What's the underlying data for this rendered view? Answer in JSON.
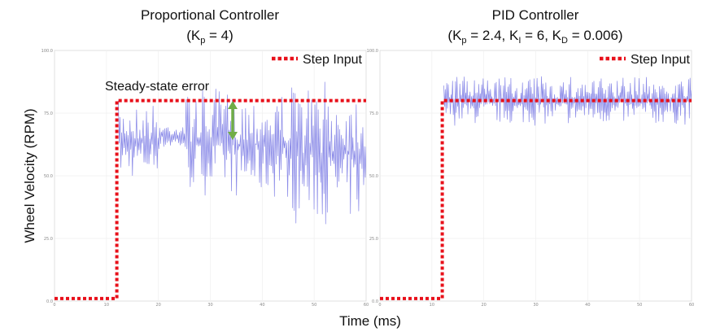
{
  "chart_data": [
    {
      "type": "line",
      "title": "Proportional Controller",
      "subtitle": {
        "prefix": "(K",
        "k1_sub": "p",
        "suffix": " = 4)"
      },
      "xlim": [
        0,
        60
      ],
      "ylim": [
        0,
        100
      ],
      "x_ticks": [
        0,
        10,
        20,
        30,
        40,
        50,
        60
      ],
      "y_ticks": [
        0,
        25,
        50,
        75,
        100
      ],
      "y_tick_labels": [
        "0.0",
        "25.0",
        "50.0",
        "75.0",
        "100.0"
      ],
      "grid": true,
      "legend": {
        "position": "top-right",
        "entries": [
          "Step Input"
        ]
      },
      "annotation": "Steady-state error",
      "step_input": {
        "name": "Step Input",
        "color": "#e8101a",
        "x": [
          0,
          12,
          12,
          60
        ],
        "y": [
          1,
          1,
          80,
          80
        ]
      },
      "response": {
        "color": "#8c8ce8",
        "start": 12.3,
        "end": 60,
        "segments": [
          {
            "x": [
              12.3,
              20
            ],
            "y_low": 48,
            "y_high": 80
          },
          {
            "x": [
              20,
              25
            ],
            "y_low": 60,
            "y_high": 72
          },
          {
            "x": [
              25,
              35
            ],
            "y_low": 42,
            "y_high": 85
          },
          {
            "x": [
              35,
              45
            ],
            "y_low": 40,
            "y_high": 85
          },
          {
            "x": [
              45,
              60
            ],
            "y_low": 30,
            "y_high": 88
          }
        ]
      }
    },
    {
      "type": "line",
      "title": "PID Controller",
      "subtitle": {
        "parts": [
          {
            "t": "(K"
          },
          {
            "t": "p",
            "sub": true
          },
          {
            "t": " = 2.4, K"
          },
          {
            "t": "I",
            "sub": true
          },
          {
            "t": " = 6, K"
          },
          {
            "t": "D",
            "sub": true
          },
          {
            "t": " = 0.006)"
          }
        ]
      },
      "xlim": [
        0,
        60
      ],
      "ylim": [
        0,
        100
      ],
      "x_ticks": [
        0,
        10,
        20,
        30,
        40,
        50,
        60
      ],
      "y_ticks": [
        0,
        25,
        50,
        75,
        100
      ],
      "y_tick_labels": [
        "0.0",
        "25.0",
        "50.0",
        "75.0",
        "100.0"
      ],
      "grid": true,
      "legend": {
        "position": "top-right",
        "entries": [
          "Step Input"
        ]
      },
      "step_input": {
        "name": "Step Input",
        "color": "#e8101a",
        "x": [
          0,
          12,
          12,
          60
        ],
        "y": [
          1,
          1,
          80,
          80
        ]
      },
      "response": {
        "color": "#8c8ce8",
        "start": 12.3,
        "end": 60,
        "segments": [
          {
            "x": [
              12.3,
              60
            ],
            "y_low": 70,
            "y_high": 90
          }
        ]
      }
    }
  ],
  "shared": {
    "ylabel": "Wheel Velocity (RPM)",
    "xlabel": "Time (ms)",
    "error_arrow_color": "#70ad47"
  }
}
